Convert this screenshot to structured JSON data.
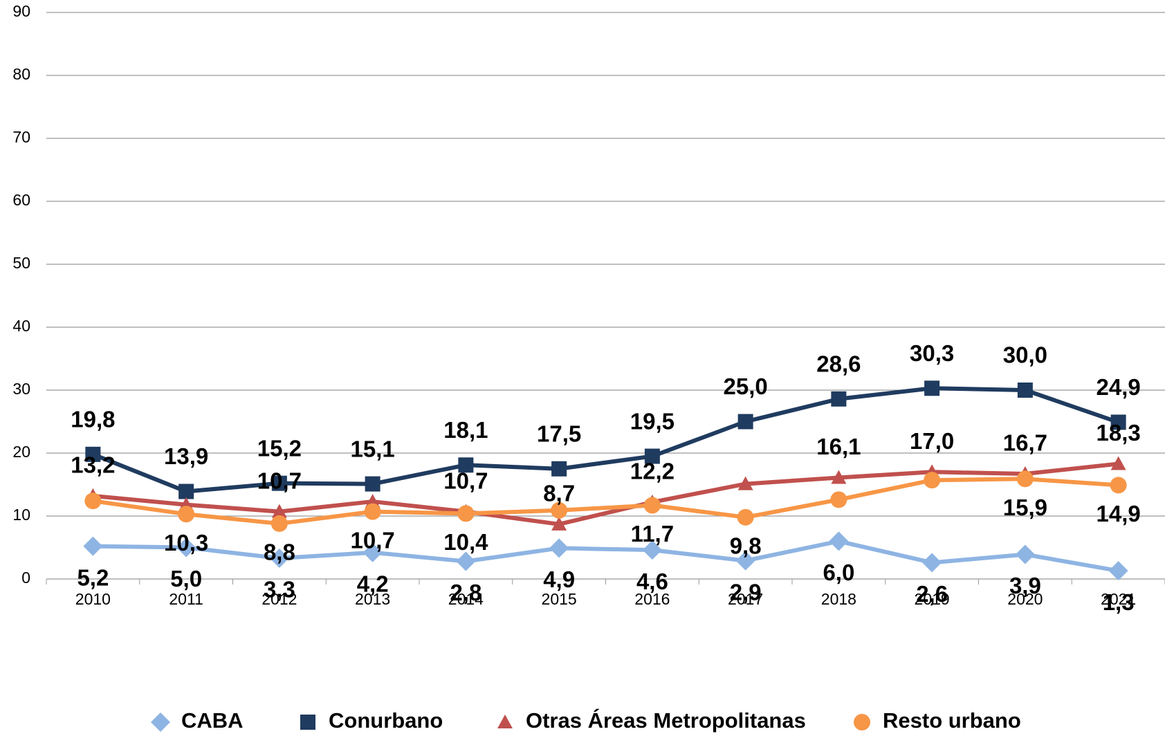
{
  "chart_data": {
    "type": "line",
    "categories": [
      "2010",
      "2011",
      "2012",
      "2013",
      "2014",
      "2015",
      "2016",
      "2017",
      "2018",
      "2019",
      "2020",
      "2021"
    ],
    "ylim": [
      0,
      90
    ],
    "yticks": [
      0,
      10,
      20,
      30,
      40,
      50,
      60,
      70,
      80,
      90
    ],
    "grid": true,
    "legend": "bottom",
    "series": [
      {
        "name": "CABA",
        "color": "#8eb4e3",
        "marker": "diamond",
        "values": [
          5.2,
          5.0,
          3.3,
          4.2,
          2.8,
          4.9,
          4.6,
          2.9,
          6.0,
          2.6,
          3.9,
          1.3
        ],
        "value_labels": [
          "5,2",
          "5,0",
          "3,3",
          "4,2",
          "2,8",
          "4,9",
          "4,6",
          "2,9",
          "6,0",
          "2,6",
          "3,9",
          "1,3"
        ]
      },
      {
        "name": "Conurbano",
        "color": "#1f3b5f",
        "marker": "square",
        "values": [
          19.8,
          13.9,
          15.2,
          15.1,
          18.1,
          17.5,
          19.5,
          25.0,
          28.6,
          30.3,
          30.0,
          24.9
        ],
        "value_labels": [
          "19,8",
          "13,9",
          "15,2",
          "15,1",
          "18,1",
          "17,5",
          "19,5",
          "25,0",
          "28,6",
          "30,3",
          "30,0",
          "24,9"
        ]
      },
      {
        "name": "Otras Áreas Metropolitanas",
        "color": "#c0504d",
        "marker": "triangle",
        "values": [
          13.2,
          11.8,
          10.7,
          12.3,
          10.7,
          8.7,
          12.2,
          15.1,
          16.1,
          17.0,
          16.7,
          18.3
        ],
        "value_labels": [
          "13,2",
          null,
          "10,7",
          null,
          "10,7",
          "8,7",
          "12,2",
          null,
          "16,1",
          "17,0",
          "16,7",
          "18,3"
        ]
      },
      {
        "name": "Resto urbano",
        "color": "#f79646",
        "marker": "circle",
        "values": [
          12.4,
          10.3,
          8.8,
          10.7,
          10.4,
          10.9,
          11.7,
          9.8,
          12.6,
          15.7,
          15.9,
          14.9
        ],
        "value_labels": [
          null,
          "10,3",
          "8,8",
          "10,7",
          "10,4",
          null,
          "11,7",
          "9,8",
          null,
          null,
          "15,9",
          "14,9"
        ]
      }
    ]
  }
}
